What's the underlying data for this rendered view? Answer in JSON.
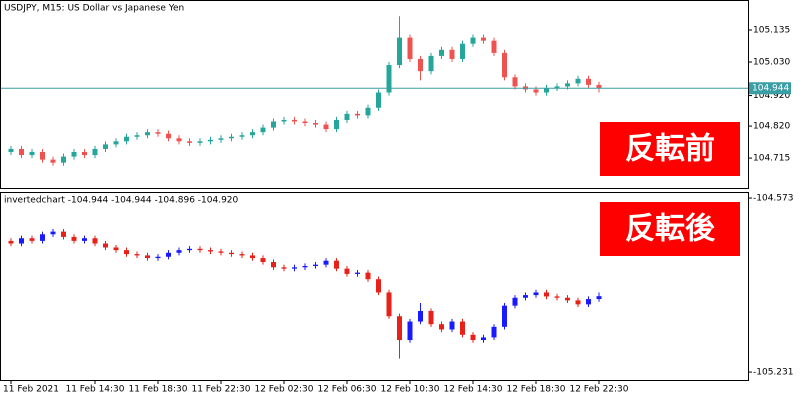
{
  "chart_data": [
    {
      "type": "candlestick",
      "title": "USDJPY, M15:  US Dollar vs Japanese Yen",
      "annotation": "反転前",
      "ylim": [
        104.617,
        105.23
      ],
      "yticks": [
        105.135,
        {
          "value": 105.03,
          "label": "105.030"
        },
        {
          "value": 104.92,
          "label": "104.920"
        },
        {
          "value": 104.82,
          "label": "104.820"
        },
        104.715
      ],
      "price_line": {
        "value": 104.944,
        "label": "104.944",
        "color": "#3a9ea5"
      },
      "up_color": "#26a69a",
      "down_color": "#ef5350",
      "open": [
        104.735,
        104.745,
        104.725,
        104.735,
        104.71,
        104.7,
        104.72,
        104.735,
        104.725,
        104.745,
        104.76,
        104.77,
        104.785,
        104.79,
        104.8,
        104.795,
        104.78,
        104.77,
        104.765,
        104.77,
        104.775,
        104.78,
        104.785,
        104.79,
        104.8,
        104.815,
        104.835,
        104.84,
        104.835,
        104.83,
        104.825,
        104.81,
        104.84,
        104.86,
        104.855,
        104.88,
        104.93,
        105.02,
        105.11,
        105.04,
        105.0,
        105.05,
        105.07,
        105.04,
        105.09,
        105.11,
        105.1,
        105.06,
        104.98,
        104.95,
        104.94,
        104.93,
        104.945,
        104.95,
        104.96,
        104.975,
        104.955
      ],
      "high": [
        104.755,
        104.755,
        104.745,
        104.745,
        104.72,
        104.73,
        104.745,
        104.745,
        104.755,
        104.77,
        104.78,
        104.795,
        104.8,
        104.81,
        104.81,
        104.805,
        104.79,
        104.78,
        104.78,
        104.785,
        104.79,
        104.795,
        104.8,
        104.81,
        104.825,
        104.845,
        104.85,
        104.85,
        104.845,
        104.84,
        104.835,
        104.85,
        104.87,
        104.87,
        104.89,
        104.94,
        105.03,
        105.18,
        105.12,
        105.05,
        105.06,
        105.08,
        105.08,
        105.1,
        105.12,
        105.12,
        105.11,
        105.07,
        104.99,
        104.96,
        104.95,
        104.955,
        104.96,
        104.97,
        104.985,
        104.985,
        104.965
      ],
      "low": [
        104.725,
        104.715,
        104.715,
        104.7,
        104.69,
        104.69,
        104.71,
        104.715,
        104.715,
        104.735,
        104.75,
        104.76,
        104.775,
        104.78,
        104.785,
        104.77,
        104.76,
        104.755,
        104.755,
        104.76,
        104.765,
        104.77,
        104.775,
        104.78,
        104.79,
        104.805,
        104.825,
        104.825,
        104.82,
        104.815,
        104.8,
        104.8,
        104.83,
        104.845,
        104.845,
        104.87,
        104.92,
        105.01,
        105.03,
        104.97,
        104.99,
        105.04,
        105.03,
        105.03,
        105.08,
        105.09,
        105.05,
        104.97,
        104.94,
        104.93,
        104.92,
        104.92,
        104.935,
        104.94,
        104.95,
        104.945,
        104.93
      ],
      "close": [
        104.745,
        104.725,
        104.735,
        104.71,
        104.7,
        104.72,
        104.735,
        104.725,
        104.745,
        104.76,
        104.77,
        104.785,
        104.79,
        104.8,
        104.795,
        104.78,
        104.77,
        104.765,
        104.77,
        104.775,
        104.78,
        104.785,
        104.79,
        104.8,
        104.815,
        104.835,
        104.84,
        104.835,
        104.83,
        104.825,
        104.81,
        104.84,
        104.86,
        104.855,
        104.88,
        104.93,
        105.02,
        105.11,
        105.04,
        105.0,
        105.05,
        105.07,
        105.04,
        105.09,
        105.11,
        105.1,
        105.06,
        104.98,
        104.95,
        104.94,
        104.93,
        104.945,
        104.95,
        104.96,
        104.975,
        104.955,
        104.944
      ]
    },
    {
      "type": "candlestick",
      "title": "invertedchart -104.944 -104.944 -104.896 -104.920",
      "annotation": "反転後",
      "ylim": [
        -105.261,
        -104.554
      ],
      "yticks": [
        -104.573,
        -105.231
      ],
      "up_color": "#1a1aff",
      "down_color": "#e8201a",
      "categories": [
        "11 Feb 2021",
        null,
        null,
        null,
        null,
        null,
        null,
        null,
        "11 Feb 14:30",
        null,
        null,
        null,
        null,
        null,
        "11 Feb 18:30",
        null,
        null,
        null,
        null,
        null,
        "11 Feb 22:30",
        null,
        null,
        null,
        null,
        null,
        "12 Feb 02:30",
        null,
        null,
        null,
        null,
        null,
        "12 Feb 06:30",
        null,
        null,
        null,
        null,
        null,
        "12 Feb 10:30",
        null,
        null,
        null,
        null,
        null,
        "12 Feb 14:30",
        null,
        null,
        null,
        null,
        null,
        "12 Feb 18:30",
        null,
        null,
        null,
        null,
        null,
        "12 Feb 22:30"
      ],
      "open": [
        -104.735,
        -104.745,
        -104.725,
        -104.735,
        -104.71,
        -104.7,
        -104.72,
        -104.735,
        -104.725,
        -104.745,
        -104.76,
        -104.77,
        -104.785,
        -104.79,
        -104.8,
        -104.795,
        -104.78,
        -104.77,
        -104.765,
        -104.77,
        -104.775,
        -104.78,
        -104.785,
        -104.79,
        -104.8,
        -104.815,
        -104.835,
        -104.84,
        -104.835,
        -104.83,
        -104.825,
        -104.81,
        -104.84,
        -104.86,
        -104.855,
        -104.88,
        -104.93,
        -105.02,
        -105.11,
        -105.04,
        -105.0,
        -105.05,
        -105.07,
        -105.04,
        -105.09,
        -105.11,
        -105.1,
        -105.06,
        -104.98,
        -104.95,
        -104.94,
        -104.93,
        -104.945,
        -104.95,
        -104.96,
        -104.975,
        -104.955
      ],
      "high": [
        -104.725,
        -104.715,
        -104.715,
        -104.7,
        -104.69,
        -104.69,
        -104.71,
        -104.715,
        -104.715,
        -104.735,
        -104.75,
        -104.76,
        -104.775,
        -104.78,
        -104.785,
        -104.77,
        -104.76,
        -104.755,
        -104.755,
        -104.76,
        -104.765,
        -104.77,
        -104.775,
        -104.78,
        -104.79,
        -104.805,
        -104.825,
        -104.825,
        -104.82,
        -104.815,
        -104.8,
        -104.8,
        -104.83,
        -104.845,
        -104.845,
        -104.87,
        -104.92,
        -105.01,
        -105.03,
        -104.97,
        -104.99,
        -105.04,
        -105.03,
        -105.03,
        -105.08,
        -105.09,
        -105.05,
        -104.97,
        -104.94,
        -104.93,
        -104.92,
        -104.92,
        -104.935,
        -104.94,
        -104.95,
        -104.945,
        -104.93
      ],
      "low": [
        -104.755,
        -104.755,
        -104.745,
        -104.745,
        -104.72,
        -104.73,
        -104.745,
        -104.745,
        -104.755,
        -104.77,
        -104.78,
        -104.795,
        -104.8,
        -104.81,
        -104.81,
        -104.805,
        -104.79,
        -104.78,
        -104.78,
        -104.785,
        -104.79,
        -104.795,
        -104.8,
        -104.81,
        -104.825,
        -104.845,
        -104.85,
        -104.85,
        -104.845,
        -104.84,
        -104.835,
        -104.85,
        -104.87,
        -104.87,
        -104.89,
        -104.94,
        -105.03,
        -105.18,
        -105.12,
        -105.05,
        -105.06,
        -105.08,
        -105.08,
        -105.1,
        -105.12,
        -105.12,
        -105.11,
        -105.07,
        -104.99,
        -104.96,
        -104.95,
        -104.955,
        -104.96,
        -104.97,
        -104.985,
        -104.985,
        -104.965
      ],
      "close": [
        -104.745,
        -104.725,
        -104.735,
        -104.71,
        -104.7,
        -104.72,
        -104.735,
        -104.725,
        -104.745,
        -104.76,
        -104.77,
        -104.785,
        -104.79,
        -104.8,
        -104.795,
        -104.78,
        -104.77,
        -104.765,
        -104.77,
        -104.775,
        -104.78,
        -104.785,
        -104.79,
        -104.8,
        -104.815,
        -104.835,
        -104.84,
        -104.835,
        -104.83,
        -104.825,
        -104.81,
        -104.84,
        -104.86,
        -104.855,
        -104.88,
        -104.93,
        -105.02,
        -105.11,
        -105.04,
        -105.0,
        -105.05,
        -105.07,
        -105.04,
        -105.09,
        -105.11,
        -105.1,
        -105.06,
        -104.98,
        -104.95,
        -104.94,
        -104.93,
        -104.945,
        -104.95,
        -104.96,
        -104.975,
        -104.955,
        -104.944
      ]
    }
  ]
}
